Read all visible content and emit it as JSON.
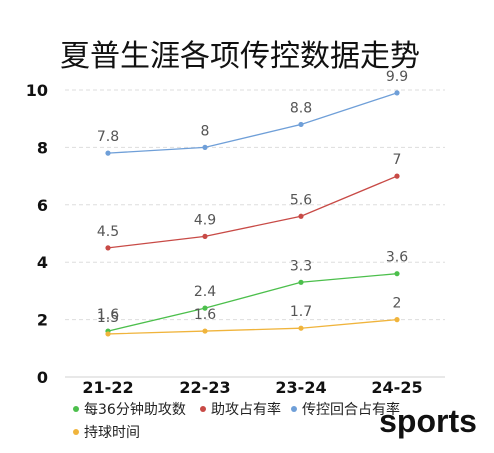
{
  "chart_data": {
    "type": "line",
    "title": "夏普生涯各项传控数据走势",
    "categories": [
      "21-22",
      "22-23",
      "23-24",
      "24-25"
    ],
    "ylim": [
      0,
      10
    ],
    "yticks": [
      0,
      2,
      4,
      6,
      8,
      10
    ],
    "grid": "horizontal dashed",
    "legend_position": "bottom",
    "series": [
      {
        "name": "每36分钟助攻数",
        "values": [
          1.6,
          2.4,
          3.3,
          3.6
        ],
        "color": "#4cbf4c"
      },
      {
        "name": "助攻占有率",
        "values": [
          4.5,
          4.9,
          5.6,
          7
        ],
        "color": "#c84a46"
      },
      {
        "name": "传控回合占有率",
        "values": [
          7.8,
          8,
          8.8,
          9.9
        ],
        "color": "#6f9fd8"
      },
      {
        "name": "持球时间",
        "values": [
          1.5,
          1.6,
          1.7,
          2
        ],
        "color": "#f0b43c"
      }
    ]
  },
  "watermark": "sports"
}
